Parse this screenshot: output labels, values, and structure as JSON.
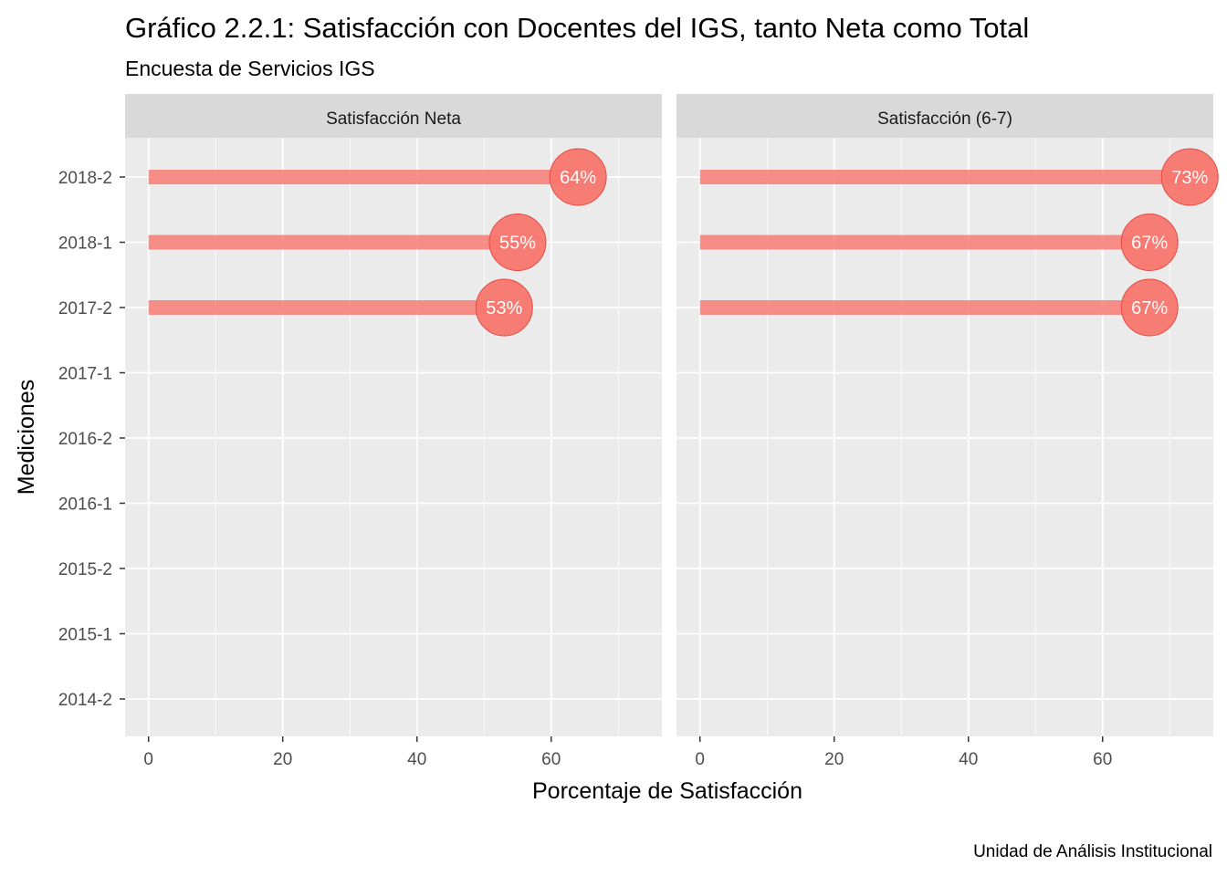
{
  "title": "Gráfico 2.2.1: Satisfacción con Docentes del IGS, tanto Neta como Total",
  "subtitle": "Encuesta de Servicios IGS",
  "caption": "Unidad de Análisis Institucional",
  "colors": {
    "panel_background": "#ebebeb",
    "strip_background": "#d9d9d9",
    "grid": "#ffffff",
    "bar": "#f8766d",
    "point": "#f8766d",
    "value_text": "#ffffff"
  },
  "chart_data": {
    "type": "bar",
    "orientation": "horizontal",
    "style": "lollipop",
    "xlabel": "Porcentaje de Satisfacción",
    "ylabel": "Mediciones",
    "xlim": [
      0,
      75
    ],
    "x_ticks": [
      0,
      20,
      40,
      60
    ],
    "grid": true,
    "legend": "none",
    "categories": [
      "2014-2",
      "2015-1",
      "2015-2",
      "2016-1",
      "2016-2",
      "2017-1",
      "2017-2",
      "2018-1",
      "2018-2"
    ],
    "facets": [
      {
        "name": "Satisfacción Neta",
        "points": [
          {
            "category": "2017-2",
            "value": 53,
            "label": "53%"
          },
          {
            "category": "2018-1",
            "value": 55,
            "label": "55%"
          },
          {
            "category": "2018-2",
            "value": 64,
            "label": "64%"
          }
        ]
      },
      {
        "name": "Satisfacción (6-7)",
        "points": [
          {
            "category": "2017-2",
            "value": 67,
            "label": "67%"
          },
          {
            "category": "2018-1",
            "value": 67,
            "label": "67%"
          },
          {
            "category": "2018-2",
            "value": 73,
            "label": "73%"
          }
        ]
      }
    ]
  }
}
